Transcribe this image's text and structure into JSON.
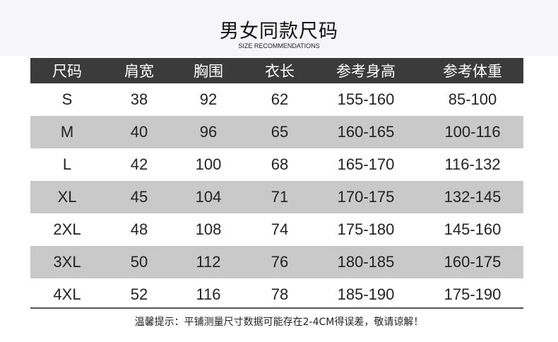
{
  "title": "男女同款尺码",
  "subtitle": "SIZE RECOMMENDATIONS",
  "colors": {
    "header_bg": "#3b3b3b",
    "stripe": "#c9c9c9",
    "top_bg": "#f6f6f8"
  },
  "table": {
    "headers": [
      "尺码",
      "肩宽",
      "胸围",
      "衣长",
      "参考身高",
      "参考体重"
    ],
    "rows": [
      [
        "S",
        "38",
        "92",
        "62",
        "155-160",
        "85-100"
      ],
      [
        "M",
        "40",
        "96",
        "65",
        "160-165",
        "100-116"
      ],
      [
        "L",
        "42",
        "100",
        "68",
        "165-170",
        "116-132"
      ],
      [
        "XL",
        "45",
        "104",
        "71",
        "170-175",
        "132-145"
      ],
      [
        "2XL",
        "48",
        "108",
        "74",
        "175-180",
        "145-160"
      ],
      [
        "3XL",
        "50",
        "112",
        "76",
        "180-185",
        "160-175"
      ],
      [
        "4XL",
        "52",
        "116",
        "78",
        "185-190",
        "175-190"
      ]
    ]
  },
  "note": "温馨提示：平铺测量尺寸数据可能存在2-4CM得误差，敬请谅解！"
}
